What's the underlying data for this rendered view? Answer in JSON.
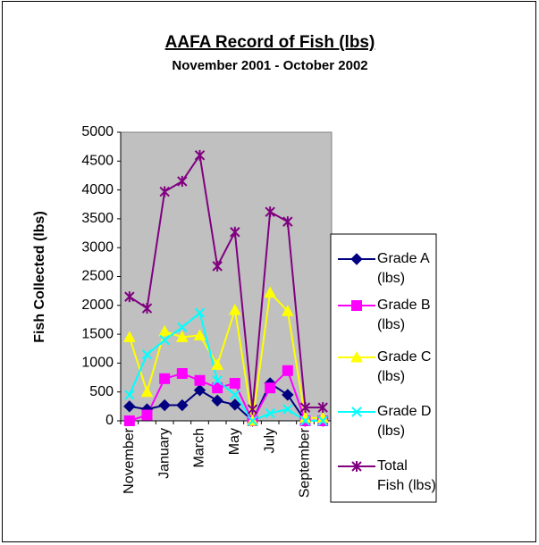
{
  "chart_data": {
    "type": "line",
    "title": "AAFA Record of Fish (lbs)",
    "subtitle": "November 2001 - October 2002",
    "y_label": "Fish Collected (lbs)",
    "categories": [
      "November",
      null,
      "January",
      null,
      "March",
      null,
      "May",
      null,
      "July",
      null,
      "September",
      null
    ],
    "series": [
      {
        "name": "Grade A (lbs)",
        "color": "#000080",
        "marker": "diamond",
        "values": [
          250,
          200,
          270,
          270,
          530,
          350,
          280,
          0,
          650,
          450,
          0,
          0
        ]
      },
      {
        "name": "Grade B (lbs)",
        "color": "#ff00ff",
        "marker": "square",
        "values": [
          0,
          100,
          730,
          820,
          700,
          570,
          650,
          0,
          570,
          870,
          0,
          0
        ]
      },
      {
        "name": "Grade C (lbs)",
        "color": "#ffff00",
        "marker": "triangle",
        "values": [
          1450,
          500,
          1550,
          1450,
          1480,
          970,
          1920,
          0,
          2220,
          1900,
          50,
          50
        ]
      },
      {
        "name": "Grade D (lbs)",
        "color": "#00ffff",
        "marker": "x",
        "values": [
          450,
          1150,
          1400,
          1620,
          1870,
          700,
          450,
          0,
          130,
          200,
          0,
          0
        ]
      },
      {
        "name": "Total Fish (lbs)",
        "color": "#800080",
        "marker": "star",
        "values": [
          2150,
          1950,
          3970,
          4150,
          4600,
          2680,
          3270,
          200,
          3620,
          3450,
          230,
          230
        ]
      }
    ],
    "ylim": [
      0,
      5000
    ],
    "yticks": [
      0,
      500,
      1000,
      1500,
      2000,
      2500,
      3000,
      3500,
      4000,
      4500,
      5000
    ],
    "grid": false,
    "legend": "right",
    "plot_background": "#c0c0c0"
  }
}
